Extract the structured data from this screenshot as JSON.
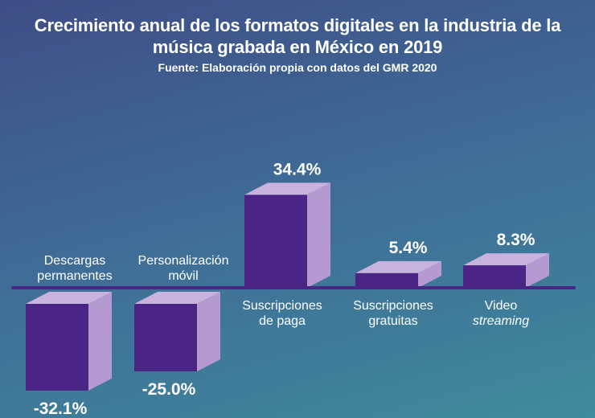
{
  "header": {
    "title_line1": "Crecimiento anual de los formatos digitales en la industria de la",
    "title_line2": "música grabada en México en 2019",
    "subtitle": "Fuente: Elaboración propia con datos del GMR 2020"
  },
  "colors": {
    "bar_front": "#4a2585",
    "bar_side": "#b49ad0",
    "bar_top": "#c7b3de",
    "baseline": "#4a2585",
    "text": "#ffffff"
  },
  "chart_data": {
    "type": "bar",
    "title": "Crecimiento anual de los formatos digitales en la industria de la música grabada en México en 2019",
    "subtitle": "Fuente: Elaboración propia con datos del GMR 2020",
    "categories": [
      [
        "Descargas",
        "permanentes"
      ],
      [
        "Personalización",
        "móvil"
      ],
      [
        "Suscripciones",
        "de paga"
      ],
      [
        "Suscripciones",
        "gratuitas"
      ],
      [
        "Video",
        "streaming"
      ]
    ],
    "values": [
      -32.1,
      -25.0,
      34.4,
      5.4,
      8.3
    ],
    "value_labels": [
      "-32.1%",
      "-25.0%",
      "34.4%",
      "5.4%",
      "8.3%"
    ],
    "italic_second_line": [
      false,
      false,
      false,
      false,
      true
    ],
    "unit": "%",
    "grid": false,
    "legend": "none"
  }
}
